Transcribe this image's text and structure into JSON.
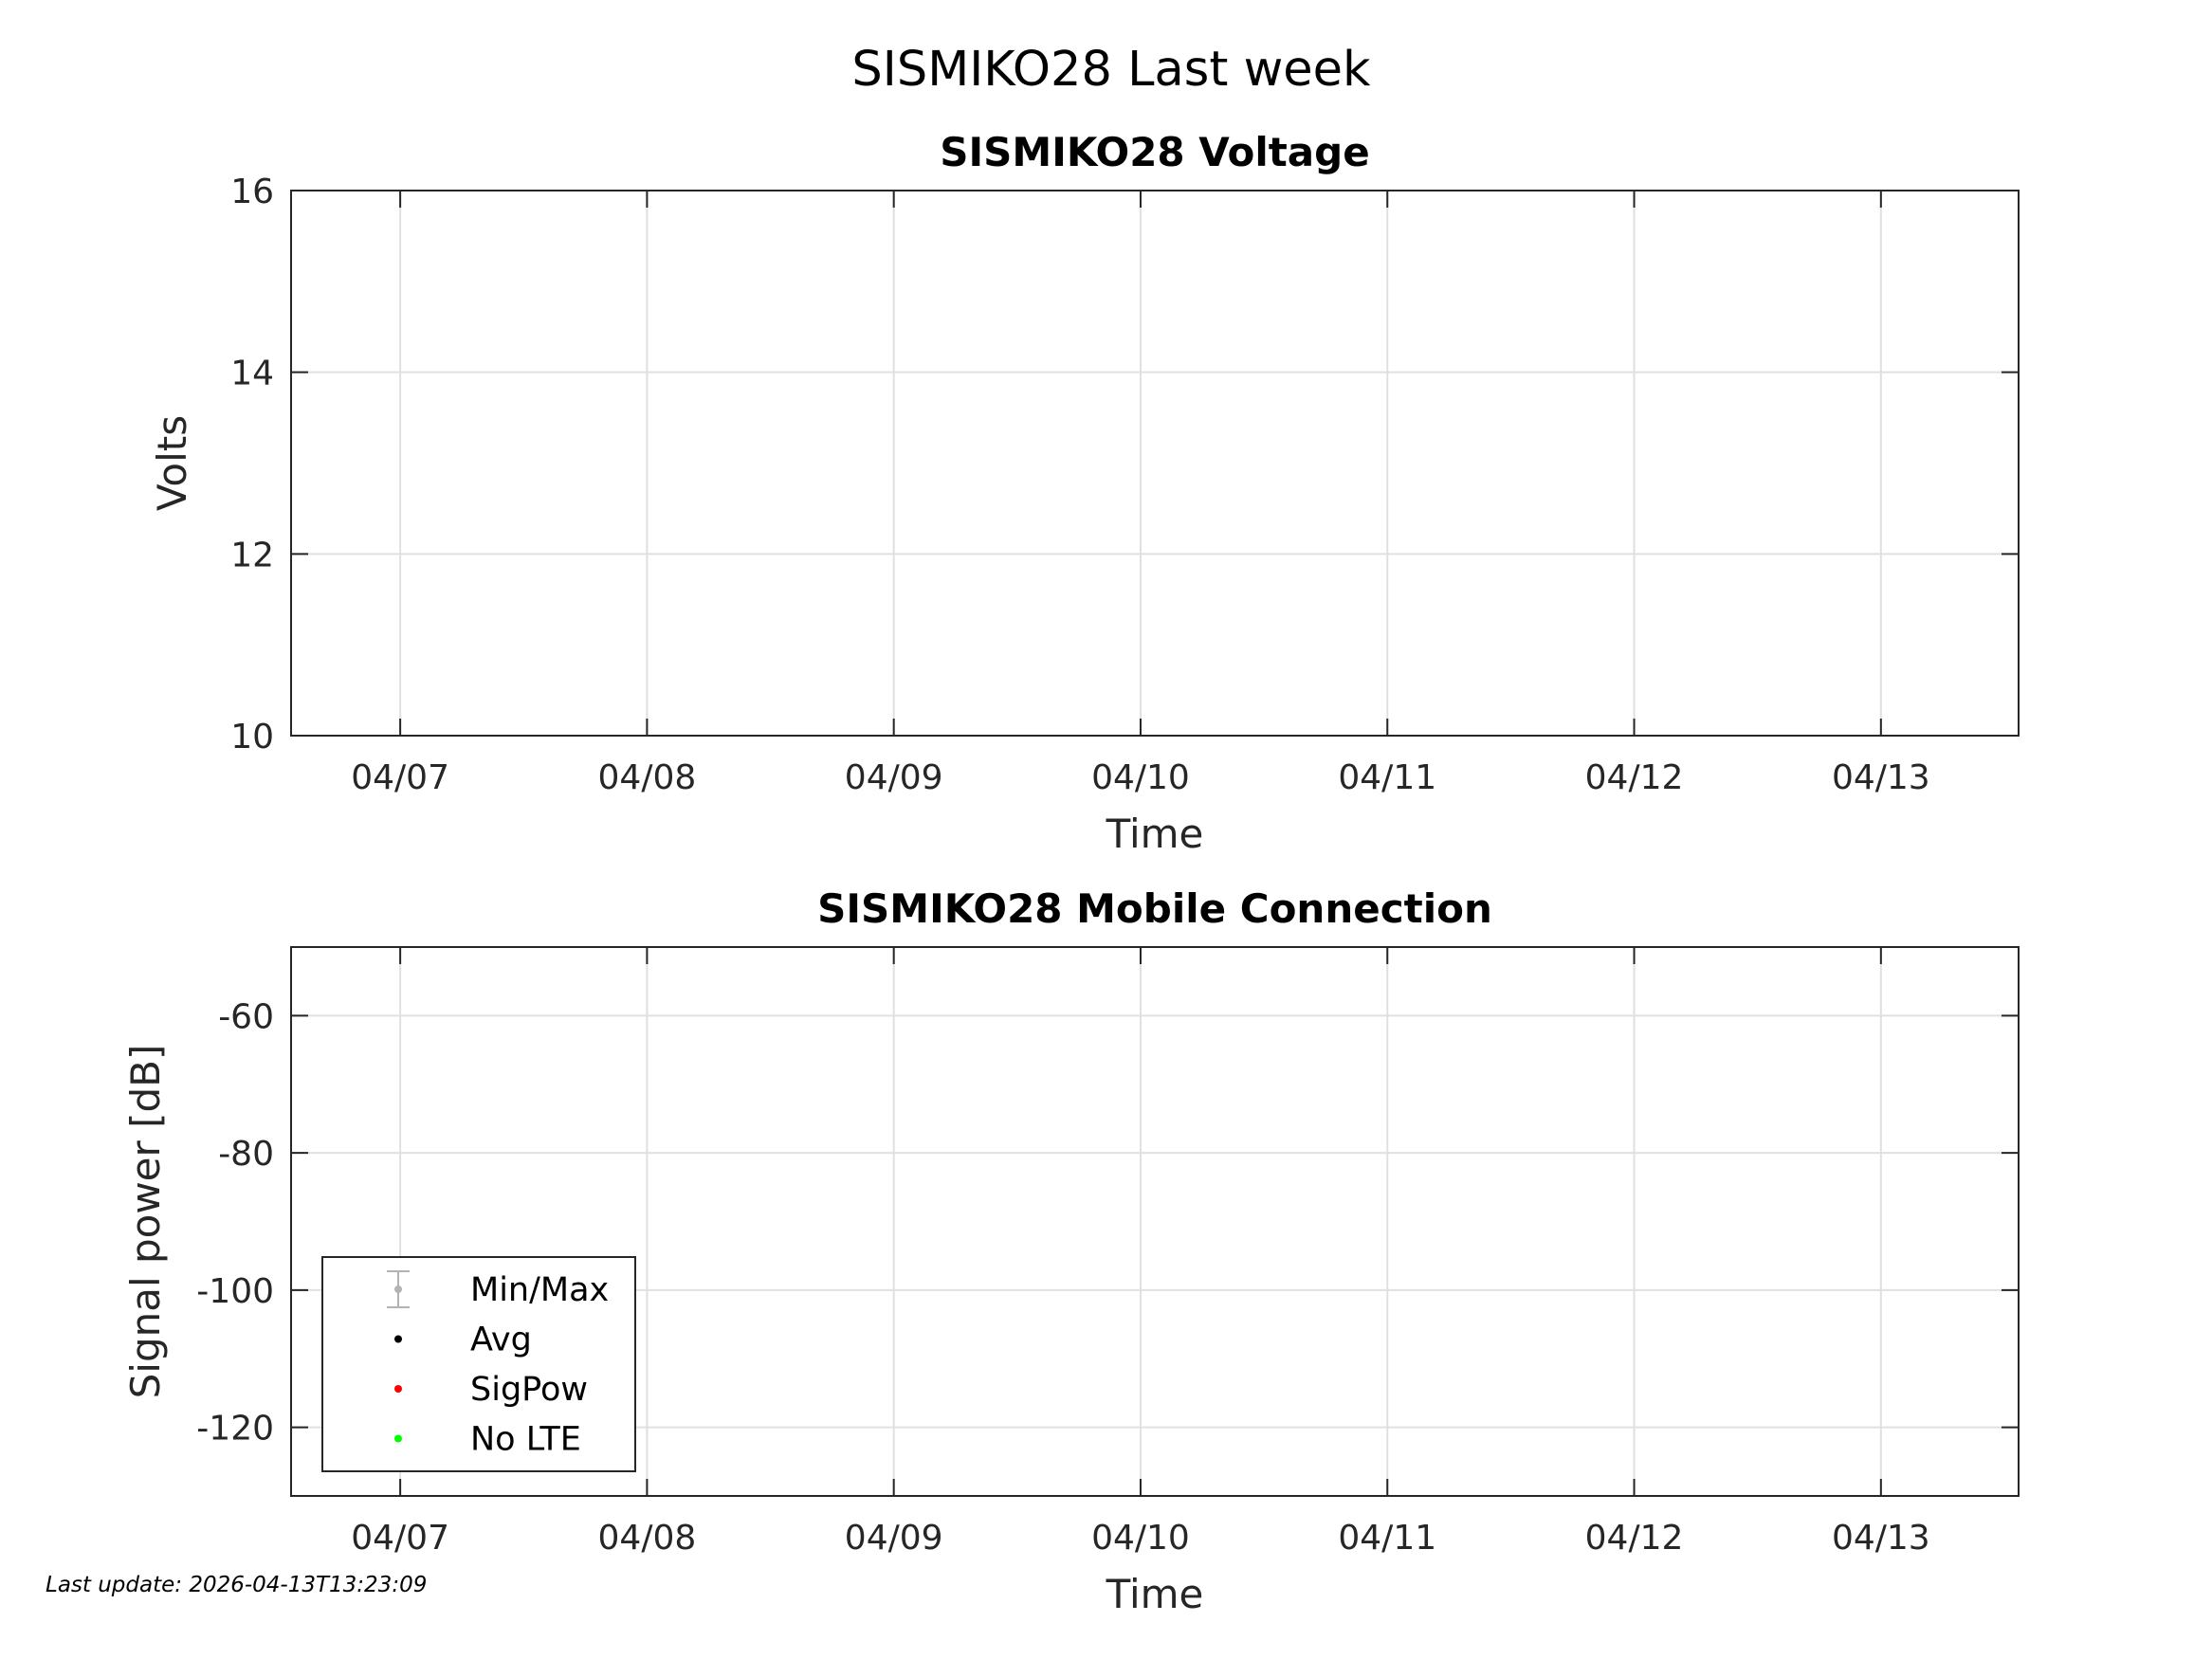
{
  "figure": {
    "title": "SISMIKO28 Last week",
    "footer": "Last update: 2026-04-13T13:23:09"
  },
  "chart_data": [
    {
      "type": "scatter",
      "title": "SISMIKO28 Voltage",
      "xlabel": "Time",
      "ylabel": "Volts",
      "xlim": [
        "2026-04-06T13:23:09",
        "2026-04-13T13:23:09"
      ],
      "ylim": [
        10,
        16
      ],
      "x_ticks": [
        "2026-04-07",
        "2026-04-08",
        "2026-04-09",
        "2026-04-10",
        "2026-04-11",
        "2026-04-12",
        "2026-04-13"
      ],
      "x_tick_labels": [
        "04/07",
        "04/08",
        "04/09",
        "04/10",
        "04/11",
        "04/12",
        "04/13"
      ],
      "y_ticks": [
        10,
        12,
        14,
        16
      ],
      "y_tick_labels": [
        "10",
        "12",
        "14",
        "16"
      ],
      "grid": true,
      "series": []
    },
    {
      "type": "scatter",
      "title": "SISMIKO28 Mobile Connection",
      "xlabel": "Time",
      "ylabel": "Signal power [dB]",
      "xlim": [
        "2026-04-06T13:23:09",
        "2026-04-13T13:23:09"
      ],
      "ylim": [
        -130,
        -50
      ],
      "x_ticks": [
        "2026-04-07",
        "2026-04-08",
        "2026-04-09",
        "2026-04-10",
        "2026-04-11",
        "2026-04-12",
        "2026-04-13"
      ],
      "x_tick_labels": [
        "04/07",
        "04/08",
        "04/09",
        "04/10",
        "04/11",
        "04/12",
        "04/13"
      ],
      "y_ticks": [
        -120,
        -100,
        -80,
        -60
      ],
      "y_tick_labels": [
        "-120",
        "-100",
        "-80",
        "-60"
      ],
      "grid": true,
      "legend_placement": "bottom-left",
      "legend": [
        {
          "name": "Min/Max",
          "marker": "errorbar",
          "color": "#b3b3b3"
        },
        {
          "name": "Avg",
          "marker": "dot",
          "color": "#000000"
        },
        {
          "name": "SigPow",
          "marker": "dot",
          "color": "#ff0000"
        },
        {
          "name": "No LTE",
          "marker": "dot",
          "color": "#00ff00"
        }
      ],
      "series": []
    }
  ]
}
